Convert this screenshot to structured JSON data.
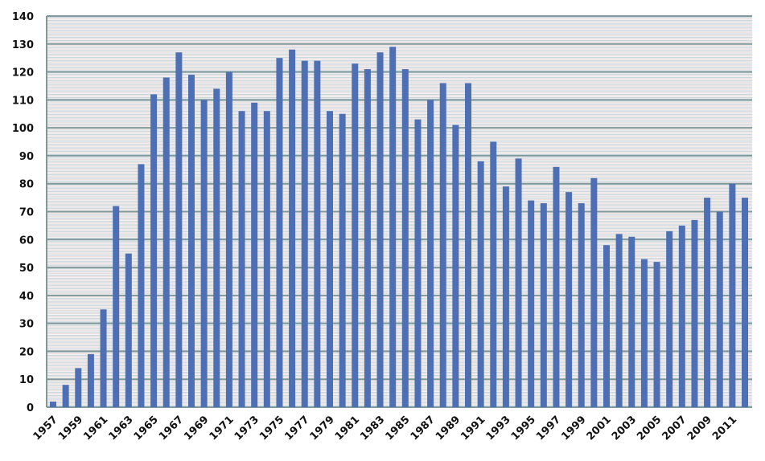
{
  "chart_data": {
    "type": "bar",
    "title": "",
    "xlabel": "",
    "ylabel": "",
    "ylim": [
      0,
      140
    ],
    "yticks": [
      0,
      10,
      20,
      30,
      40,
      50,
      60,
      70,
      80,
      90,
      100,
      110,
      120,
      130,
      140
    ],
    "grid": true,
    "legend": "none",
    "bar_color": "#4f6fb5",
    "grid_color": "#7f9a9a",
    "categories": [
      "1957",
      "1958",
      "1959",
      "1960",
      "1961",
      "1962",
      "1963",
      "1964",
      "1965",
      "1966",
      "1967",
      "1968",
      "1969",
      "1970",
      "1971",
      "1972",
      "1973",
      "1974",
      "1975",
      "1976",
      "1977",
      "1978",
      "1979",
      "1980",
      "1981",
      "1982",
      "1983",
      "1984",
      "1985",
      "1986",
      "1987",
      "1988",
      "1989",
      "1990",
      "1991",
      "1992",
      "1993",
      "1994",
      "1995",
      "1996",
      "1997",
      "1998",
      "1999",
      "2000",
      "2001",
      "2002",
      "2003",
      "2004",
      "2005",
      "2006",
      "2007",
      "2008",
      "2009",
      "2010",
      "2011",
      "2012"
    ],
    "tick_labels": [
      "1957",
      "1959",
      "1961",
      "1963",
      "1965",
      "1967",
      "1969",
      "1971",
      "1973",
      "1975",
      "1977",
      "1979",
      "1981",
      "1983",
      "1985",
      "1987",
      "1989",
      "1991",
      "1993",
      "1995",
      "1997",
      "1999",
      "2001",
      "2003",
      "2005",
      "2007",
      "2009",
      "2011"
    ],
    "values": [
      2,
      8,
      14,
      19,
      35,
      72,
      55,
      87,
      112,
      118,
      127,
      119,
      110,
      114,
      120,
      106,
      109,
      106,
      125,
      128,
      124,
      124,
      106,
      105,
      123,
      121,
      127,
      129,
      121,
      103,
      110,
      116,
      101,
      116,
      88,
      95,
      79,
      89,
      74,
      73,
      86,
      77,
      73,
      82,
      58,
      62,
      61,
      53,
      52,
      63,
      65,
      67,
      75,
      70,
      80,
      75
    ]
  }
}
